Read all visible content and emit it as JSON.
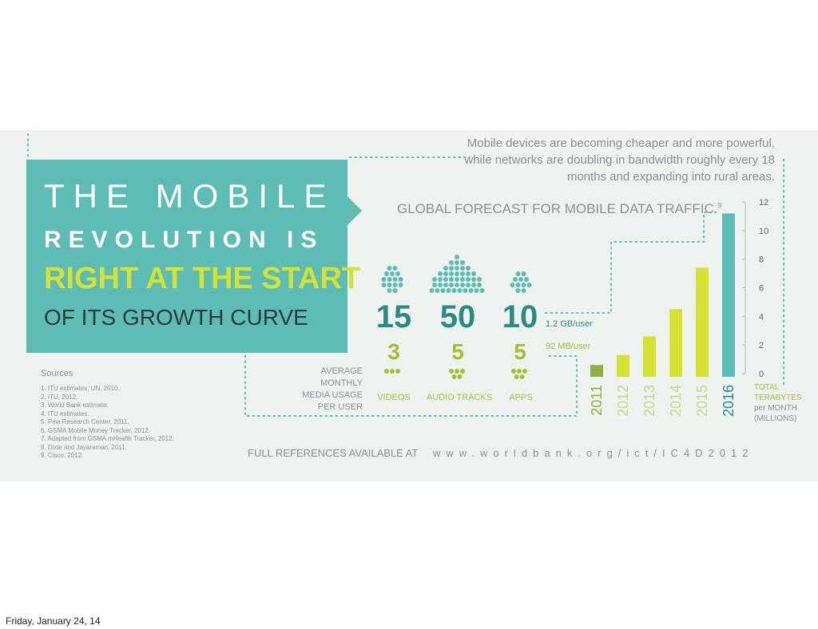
{
  "headline": {
    "line1": "THE MOBILE",
    "line2": "REVOLUTION IS",
    "line3": "RIGHT AT THE START",
    "line4": "OF ITS GROWTH CURVE"
  },
  "intro": "Mobile devices are becoming cheaper and more powerful, while networks are doubling in bandwidth roughly every 18 months and expanding into rural areas.",
  "chart_title": "GLOBAL FORECAST FOR MOBILE DATA TRAFFIC",
  "chart_title_ref": "9",
  "sources": {
    "heading": "Sources",
    "items": [
      "1. ITU estimates; UN, 2010.",
      "2. ITU, 2012.",
      "3. World Bank estimate.",
      "4. ITU estimates.",
      "5. Pew Research Center, 2011.",
      "6. GSMA Mobile Money Tracker, 2012.",
      "7. Adapted from GSMA mHealth Tracker, 2012.",
      "8. Dixie and Jayaraman, 2011.",
      "9. Cisco, 2012."
    ]
  },
  "usage": {
    "label": "AVERAGE MONTHLY MEDIA USAGE PER USER",
    "label_lines": [
      "AVERAGE MONTHLY",
      "MEDIA USAGE",
      "PER USER"
    ],
    "categories": [
      {
        "name": "VIDEOS",
        "value_2016": "15",
        "value_2011": "3"
      },
      {
        "name": "AUDIO TRACKS",
        "value_2016": "50",
        "value_2011": "5"
      },
      {
        "name": "APPS",
        "value_2016": "10",
        "value_2011": "5"
      }
    ],
    "rate_2016": "1.2 GB/user",
    "rate_2011": "92 MB/user"
  },
  "footer": {
    "label": "FULL REFERENCES AVAILABLE AT",
    "url": "www.worldbank.org/ict/IC4D2012"
  },
  "date_footer": "Friday, January 24, 14",
  "colors": {
    "teal": "#5dbdb5",
    "dark_teal": "#2a8a86",
    "lime": "#d3e233",
    "olive": "#a6bd36",
    "dark_green": "#8fb03e",
    "gray_text": "#8b9096",
    "panel_bg": "#eef3ef"
  },
  "chart_data": {
    "type": "bar",
    "categories": [
      "2011",
      "2012",
      "2013",
      "2014",
      "2015",
      "2016"
    ],
    "values": [
      0.6,
      1.3,
      2.6,
      4.5,
      7.4,
      11.2
    ],
    "ylim": [
      0,
      12
    ],
    "yticks": [
      0,
      2,
      4,
      6,
      8,
      10,
      12
    ],
    "ylabel_lines": [
      "TOTAL",
      "TERABYTES",
      "per MONTH",
      "(MILLIONS)"
    ],
    "bar_colors": [
      "#8fb03e",
      "#d3e233",
      "#d3e233",
      "#d3e233",
      "#d3e233",
      "#5dbdb5"
    ],
    "label_colors": [
      "#8fb03e",
      "#c6d98c",
      "#c6d98c",
      "#c6d98c",
      "#c6d98c",
      "#2a8a86"
    ]
  }
}
